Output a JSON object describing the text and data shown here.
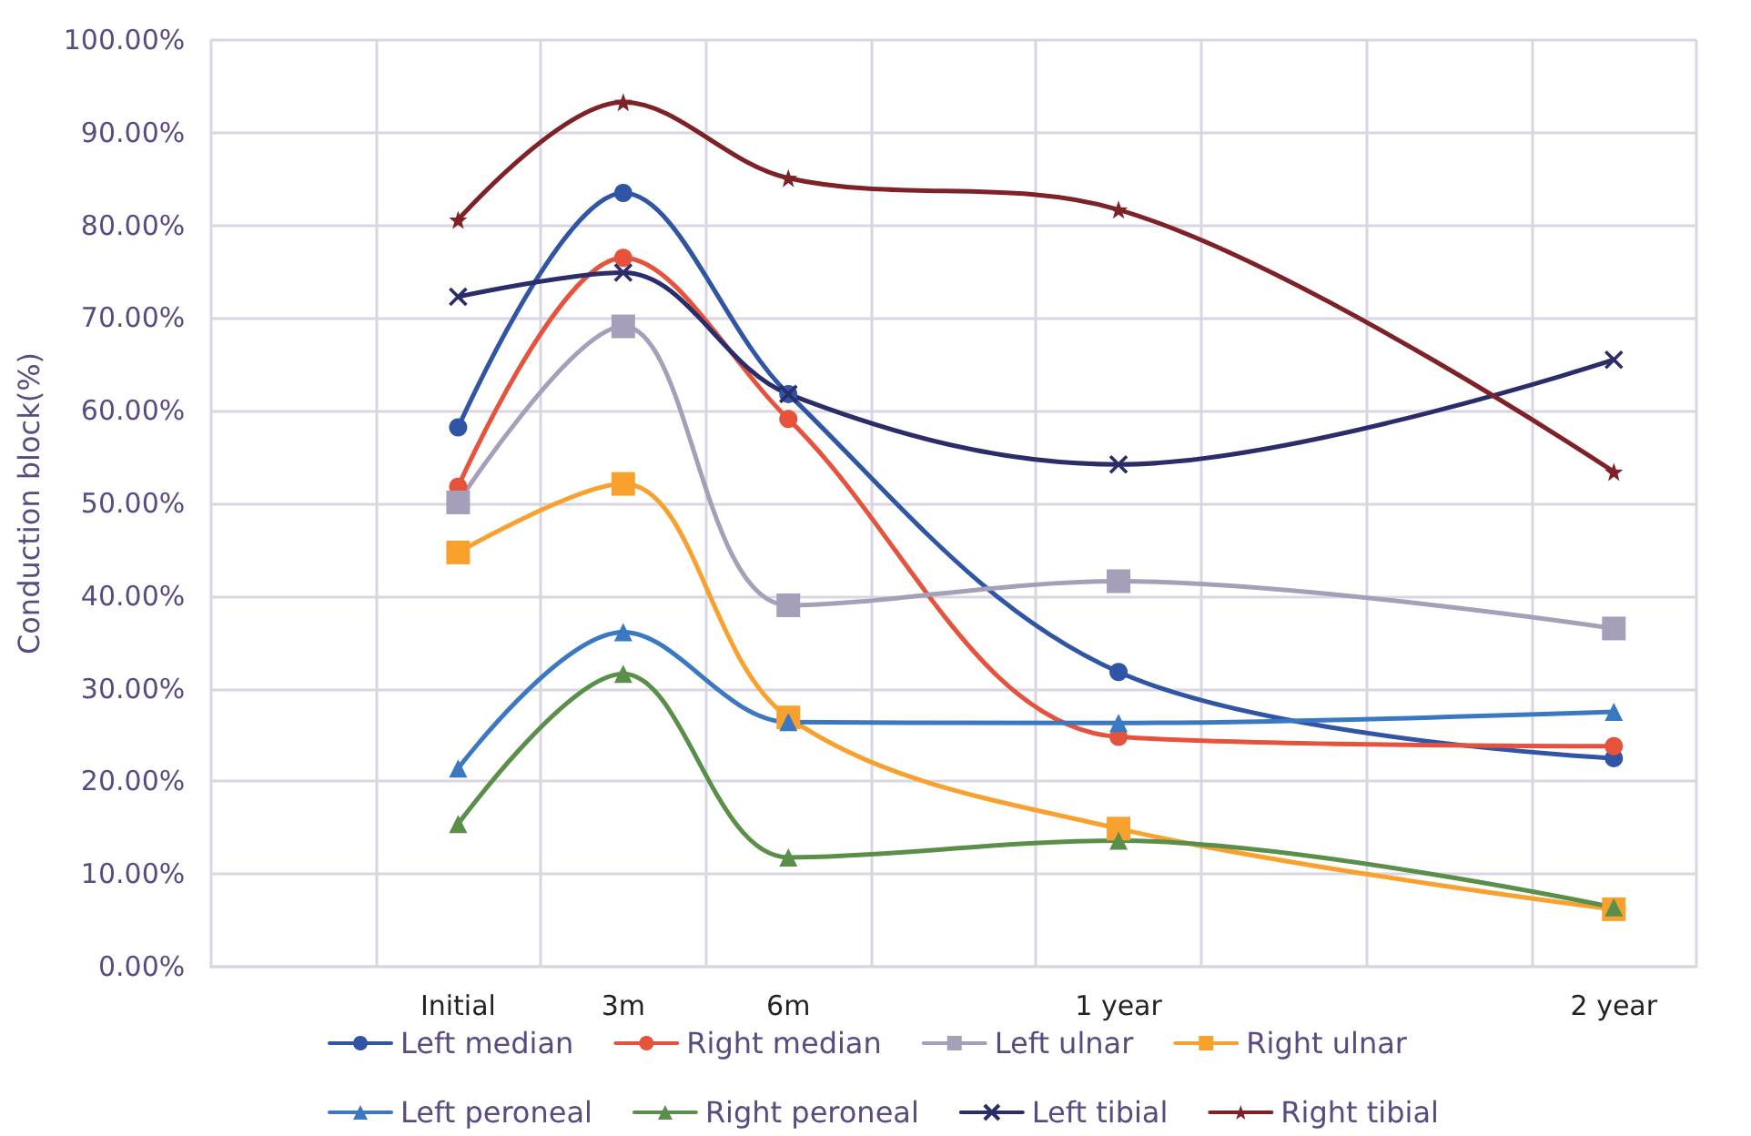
{
  "chart_data": {
    "type": "line",
    "ylabel": "Conduction block(%)",
    "categories": [
      null,
      "Initial",
      "3m",
      "6m",
      null,
      "1 year",
      null,
      null,
      "2 year"
    ],
    "ylim": [
      0,
      100
    ],
    "yticks": [
      {
        "value": 0,
        "label": "0.00%"
      },
      {
        "value": 10,
        "label": "10.00%"
      },
      {
        "value": 20,
        "label": "20.00%"
      },
      {
        "value": 30,
        "label": "30.00%"
      },
      {
        "value": 40,
        "label": "40.00%"
      },
      {
        "value": 50,
        "label": "50.00%"
      },
      {
        "value": 60,
        "label": "60.00%"
      },
      {
        "value": 70,
        "label": "70.00%"
      },
      {
        "value": 80,
        "label": "80.00%"
      },
      {
        "value": 90,
        "label": "90.00%"
      },
      {
        "value": 100,
        "label": "100.00%"
      }
    ],
    "grid": true,
    "legend": "bottom",
    "series": [
      {
        "name": "Left median",
        "color": "#2f55a4",
        "marker": "circle",
        "values": [
          null,
          58.2,
          83.5,
          61.8,
          null,
          31.8,
          null,
          null,
          22.5
        ]
      },
      {
        "name": "Right median",
        "color": "#e5533d",
        "marker": "circle",
        "values": [
          null,
          51.8,
          76.5,
          59.1,
          null,
          24.8,
          null,
          null,
          23.8
        ]
      },
      {
        "name": "Left ulnar",
        "color": "#a59fba",
        "marker": "square",
        "values": [
          null,
          50.1,
          69.1,
          39.0,
          null,
          41.6,
          null,
          null,
          36.5
        ]
      },
      {
        "name": "Right ulnar",
        "color": "#f9a12e",
        "marker": "square",
        "values": [
          null,
          44.7,
          52.1,
          26.9,
          null,
          14.9,
          null,
          null,
          6.2
        ]
      },
      {
        "name": "Left peroneal",
        "color": "#3a78c2",
        "marker": "triangle",
        "values": [
          null,
          21.4,
          36.1,
          26.4,
          null,
          26.3,
          null,
          null,
          27.5
        ]
      },
      {
        "name": "Right peroneal",
        "color": "#5a8f4a",
        "marker": "triangle",
        "values": [
          null,
          15.4,
          31.6,
          11.8,
          null,
          13.6,
          null,
          null,
          6.4
        ]
      },
      {
        "name": "Left tibial",
        "color": "#2b2d6b",
        "marker": "cross",
        "values": [
          null,
          72.3,
          74.9,
          61.8,
          null,
          54.2,
          null,
          null,
          65.5
        ]
      },
      {
        "name": "Right tibial",
        "color": "#7e2228",
        "marker": "star",
        "values": [
          null,
          80.6,
          93.3,
          85.1,
          null,
          81.7,
          null,
          null,
          53.4
        ]
      }
    ]
  }
}
